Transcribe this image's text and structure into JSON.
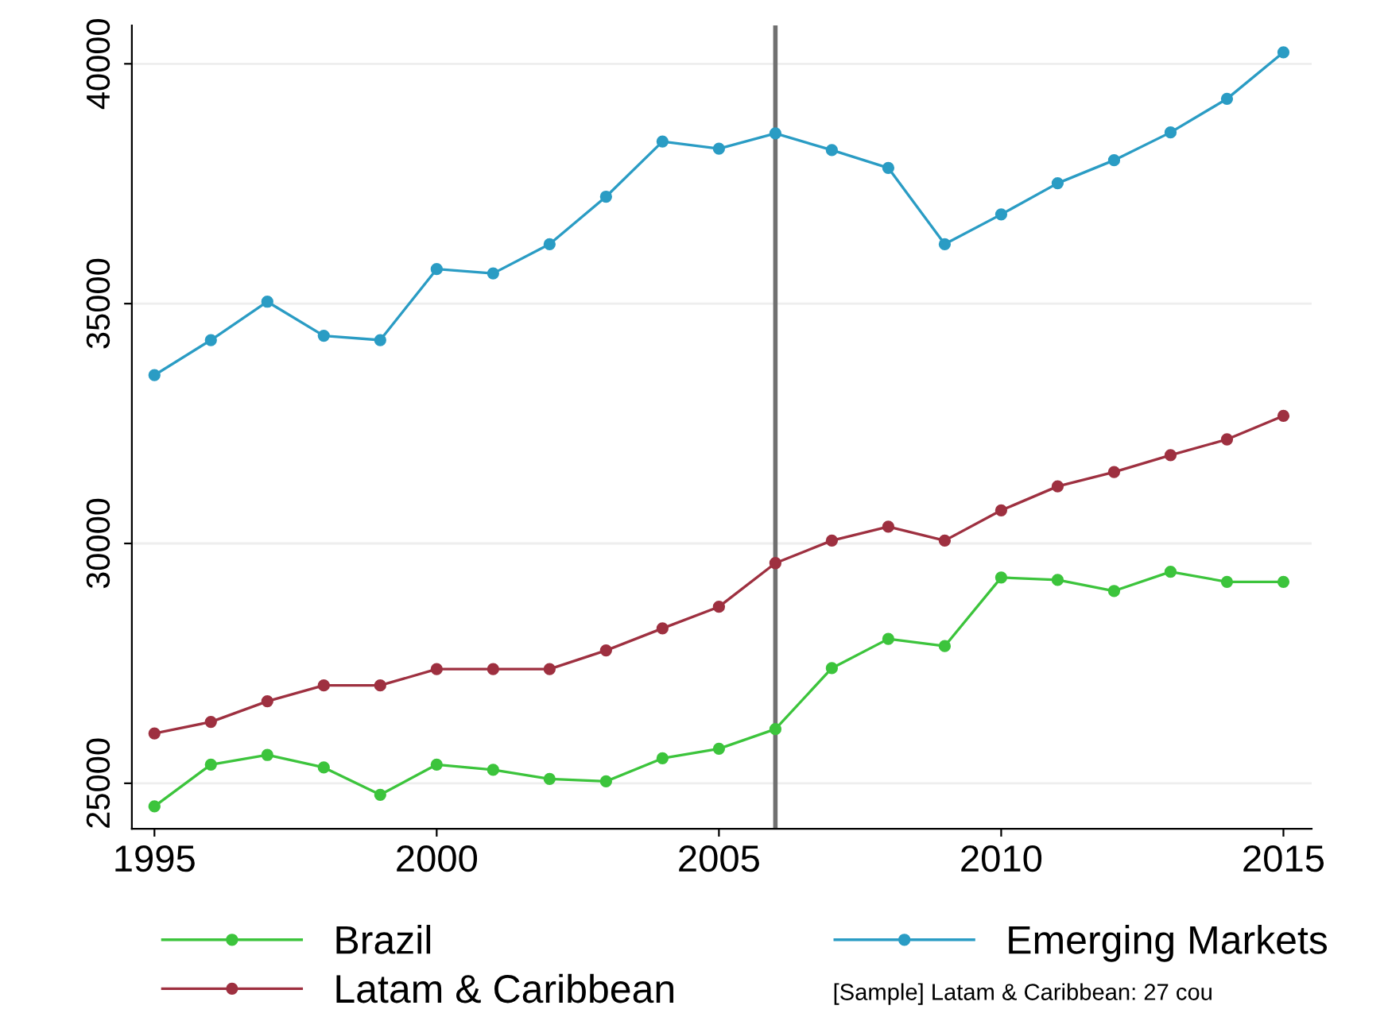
{
  "chart_data": {
    "type": "line",
    "x": [
      1995,
      1996,
      1997,
      1998,
      1999,
      2000,
      2001,
      2002,
      2003,
      2004,
      2005,
      2006,
      2007,
      2008,
      2009,
      2010,
      2011,
      2012,
      2013,
      2014,
      2015
    ],
    "series": [
      {
        "name": "Brazil",
        "color": "#3cc43c",
        "values": [
          24520,
          25390,
          25590,
          25330,
          24760,
          25390,
          25280,
          25090,
          25040,
          25520,
          25720,
          26130,
          27400,
          28010,
          27860,
          29290,
          29240,
          29010,
          29410,
          29200,
          29200
        ]
      },
      {
        "name": "Latam & Caribbean",
        "color": "#9e3040",
        "values": [
          26040,
          26280,
          26710,
          27040,
          27040,
          27380,
          27380,
          27380,
          27770,
          28230,
          28680,
          29590,
          30060,
          30350,
          30060,
          30690,
          31190,
          31490,
          31840,
          32170,
          32660
        ]
      },
      {
        "name": "Emerging Markets",
        "color": "#2a9cc4",
        "values": [
          33510,
          34240,
          35040,
          34330,
          34240,
          35720,
          35630,
          36240,
          37230,
          38380,
          38230,
          38550,
          38200,
          37830,
          36240,
          36860,
          37510,
          37990,
          38570,
          39270,
          40240
        ]
      }
    ],
    "xlim": [
      1994.6,
      2015.5
    ],
    "xticks": [
      1995,
      2000,
      2005,
      2010,
      2015
    ],
    "ylim": [
      24050,
      40800
    ],
    "yticks": [
      25000,
      30000,
      35000,
      40000
    ],
    "grid": "y",
    "marker": "circle",
    "line_style": "solid",
    "legend": "bottom",
    "ref_lines": [
      {
        "axis": "x",
        "value": 2006,
        "color": "#707070"
      }
    ],
    "annotations": [
      "[Sample] Latam & Caribbean: 27 cou"
    ]
  }
}
